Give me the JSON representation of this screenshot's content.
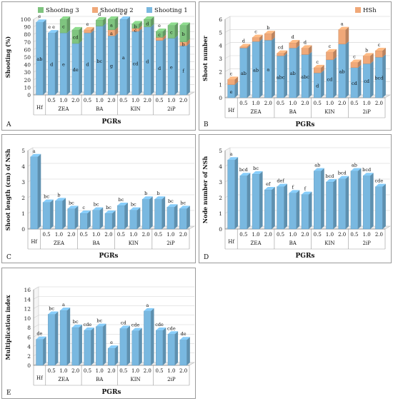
{
  "chart_data": [
    {
      "type": "bar",
      "panel_letter": "A",
      "ylabel": "Shooting (%)",
      "xlabel": "PGRs",
      "ylim": [
        0,
        100
      ],
      "yticks": [
        0,
        10,
        20,
        30,
        40,
        50,
        60,
        70,
        80,
        90,
        100
      ],
      "stacked": true,
      "legend_position": "top",
      "categories": [
        "Hf",
        "0.5",
        "1.0",
        "2.0",
        "0.5",
        "1.0",
        "2.0",
        "0.5",
        "1.0",
        "2.0",
        "0.5",
        "1.0",
        "2.0"
      ],
      "groups": [
        {
          "label": "Hf",
          "start": 0,
          "end": 0
        },
        {
          "label": "ZEA",
          "start": 1,
          "end": 3
        },
        {
          "label": "BA",
          "start": 4,
          "end": 6
        },
        {
          "label": "KIN",
          "start": 7,
          "end": 9
        },
        {
          "label": "2iP",
          "start": 10,
          "end": 12
        }
      ],
      "series": [
        {
          "name": "Shooting 1",
          "color": "#79b8e0",
          "values": [
            96,
            82,
            82,
            68,
            82,
            91,
            78,
            100,
            84,
            90,
            72,
            75,
            65
          ],
          "labels": [
            "ab",
            "d",
            "e",
            "de",
            "d",
            "bc",
            "g",
            "a",
            "cd",
            "d",
            "d",
            "e",
            "f"
          ]
        },
        {
          "name": "Shooting 2",
          "color": "#f0a878",
          "values": [
            0,
            0,
            0,
            0,
            4,
            0,
            8,
            0,
            4,
            0,
            4,
            0,
            5
          ],
          "labels": [
            "",
            "",
            "",
            "",
            "",
            "",
            "a",
            "",
            "c",
            "",
            "",
            "",
            "b"
          ]
        },
        {
          "name": "Shooting 3",
          "color": "#7fc47f",
          "values": [
            0,
            0,
            18,
            18,
            0,
            8,
            14,
            0,
            6,
            10,
            8,
            17,
            22
          ],
          "labels": [
            "",
            "",
            "c",
            "cd",
            "",
            "",
            "a",
            "",
            "b",
            "d",
            "c",
            "c",
            "b"
          ]
        }
      ],
      "total_labels": [
        "e",
        "e e",
        "",
        "",
        "e",
        "d",
        "",
        "e e",
        "",
        "",
        "e",
        "",
        ""
      ]
    },
    {
      "type": "bar",
      "panel_letter": "B",
      "ylabel": "Shoot number",
      "xlabel": "PGRs",
      "ylim": [
        0,
        6
      ],
      "yticks": [
        0,
        1,
        2,
        3,
        4,
        5,
        6
      ],
      "stacked": true,
      "legend_position": "top-right",
      "categories": [
        "Hf",
        "0.5",
        "1.0",
        "2.0",
        "0.5",
        "1.0",
        "2.0",
        "0.5",
        "1.0",
        "2.0",
        "0.5",
        "1.0",
        "2.0"
      ],
      "groups": [
        {
          "label": "Hf",
          "start": 0,
          "end": 0
        },
        {
          "label": "ZEA",
          "start": 1,
          "end": 3
        },
        {
          "label": "BA",
          "start": 4,
          "end": 6
        },
        {
          "label": "KIN",
          "start": 7,
          "end": 9
        },
        {
          "label": "2iP",
          "start": 10,
          "end": 12
        }
      ],
      "series": [
        {
          "name": "",
          "color": "#79b8e0",
          "values": [
            1.0,
            3.8,
            4.3,
            4.4,
            3.2,
            3.8,
            3.3,
            1.9,
            2.9,
            4.1,
            2.3,
            2.6,
            3.1
          ],
          "labels": [
            "e",
            "ab",
            "ab",
            "a",
            "abc",
            "ab",
            "abc",
            "d",
            "cd",
            "ab",
            "cd",
            "cd",
            "bcd"
          ]
        },
        {
          "name": "HSh",
          "color": "#f0a878",
          "values": [
            0.4,
            0.1,
            0.3,
            0.5,
            0.2,
            0.4,
            0.5,
            0.4,
            0.6,
            1.1,
            0.4,
            0.6,
            0.5
          ],
          "labels": [
            "",
            "",
            "",
            "",
            "",
            "",
            "",
            "",
            "",
            "",
            "",
            "",
            ""
          ]
        }
      ],
      "total_labels": [
        "c",
        "d",
        "c",
        "b",
        "cd",
        "d",
        "d",
        "c",
        "c",
        "a",
        "c",
        "b",
        "c"
      ]
    },
    {
      "type": "bar",
      "panel_letter": "C",
      "ylabel": "Shoot length (cm) of NSh",
      "xlabel": "PGRs",
      "ylim": [
        0,
        5
      ],
      "yticks": [
        0,
        1,
        2,
        3,
        4,
        5
      ],
      "stacked": false,
      "categories": [
        "Hf",
        "0.5",
        "1.0",
        "2.0",
        "0.5",
        "1.0",
        "2.0",
        "0.5",
        "1.0",
        "2.0",
        "0.5",
        "1.0",
        "2.0"
      ],
      "groups": [
        {
          "label": "Hf",
          "start": 0,
          "end": 0
        },
        {
          "label": "ZEA",
          "start": 1,
          "end": 3
        },
        {
          "label": "BA",
          "start": 4,
          "end": 6
        },
        {
          "label": "KIN",
          "start": 7,
          "end": 9
        },
        {
          "label": "2iP",
          "start": 10,
          "end": 12
        }
      ],
      "series": [
        {
          "name": "",
          "color": "#79b8e0",
          "values": [
            4.6,
            1.7,
            1.8,
            1.3,
            1.0,
            1.2,
            1.0,
            1.5,
            1.2,
            1.9,
            1.9,
            1.4,
            1.3
          ],
          "labels": [
            "a",
            "bc",
            "b",
            "bc",
            "c",
            "bc",
            "bc",
            "bc",
            "bc",
            "b",
            "b",
            "bc",
            "bc"
          ]
        }
      ]
    },
    {
      "type": "bar",
      "panel_letter": "D",
      "ylabel": "Node number of NSh",
      "xlabel": "PGRs",
      "ylim": [
        0,
        5
      ],
      "yticks": [
        0,
        1,
        2,
        3,
        4,
        5
      ],
      "stacked": false,
      "categories": [
        "Hf",
        "0.5",
        "1.0",
        "2.0",
        "0.5",
        "1.0",
        "2.0",
        "0.5",
        "1.0",
        "2.0",
        "0.5",
        "1.0",
        "2.0"
      ],
      "groups": [
        {
          "label": "Hf",
          "start": 0,
          "end": 0
        },
        {
          "label": "ZEA",
          "start": 1,
          "end": 3
        },
        {
          "label": "BA",
          "start": 4,
          "end": 6
        },
        {
          "label": "KIN",
          "start": 7,
          "end": 9
        },
        {
          "label": "2iP",
          "start": 10,
          "end": 12
        }
      ],
      "series": [
        {
          "name": "",
          "color": "#79b8e0",
          "values": [
            4.4,
            3.4,
            3.5,
            2.5,
            2.7,
            2.3,
            2.2,
            3.7,
            3.0,
            3.2,
            3.7,
            3.4,
            2.7
          ],
          "labels": [
            "a",
            "bcd",
            "bc",
            "ef",
            "def",
            "f",
            "f",
            "ab",
            "bcd",
            "bcd",
            "ab",
            "bcd",
            "cde"
          ]
        }
      ]
    },
    {
      "type": "bar",
      "panel_letter": "E",
      "ylabel": "Multiplication index",
      "xlabel": "PGRs",
      "ylim": [
        0,
        16
      ],
      "yticks": [
        0,
        2,
        4,
        6,
        8,
        10,
        12,
        14,
        16
      ],
      "stacked": false,
      "categories": [
        "Hf",
        "0.5",
        "1.0",
        "2.0",
        "0.5",
        "1.0",
        "2.0",
        "0.5",
        "1.0",
        "2.0",
        "0.5",
        "1.0",
        "2.0"
      ],
      "groups": [
        {
          "label": "Hf",
          "start": 0,
          "end": 0
        },
        {
          "label": "ZEA",
          "start": 1,
          "end": 3
        },
        {
          "label": "BA",
          "start": 4,
          "end": 6
        },
        {
          "label": "KIN",
          "start": 7,
          "end": 9
        },
        {
          "label": "2iP",
          "start": 10,
          "end": 12
        }
      ],
      "series": [
        {
          "name": "",
          "color": "#79b8e0",
          "values": [
            5.5,
            10.8,
            11.6,
            8.0,
            7.4,
            8.2,
            3.6,
            7.8,
            7.3,
            11.5,
            7.4,
            6.6,
            5.4
          ],
          "labels": [
            "de",
            "bc",
            "a",
            "bc",
            "cde",
            "bc",
            "e",
            "cd",
            "cde",
            "a",
            "cde",
            "cde",
            "de"
          ]
        }
      ]
    }
  ]
}
